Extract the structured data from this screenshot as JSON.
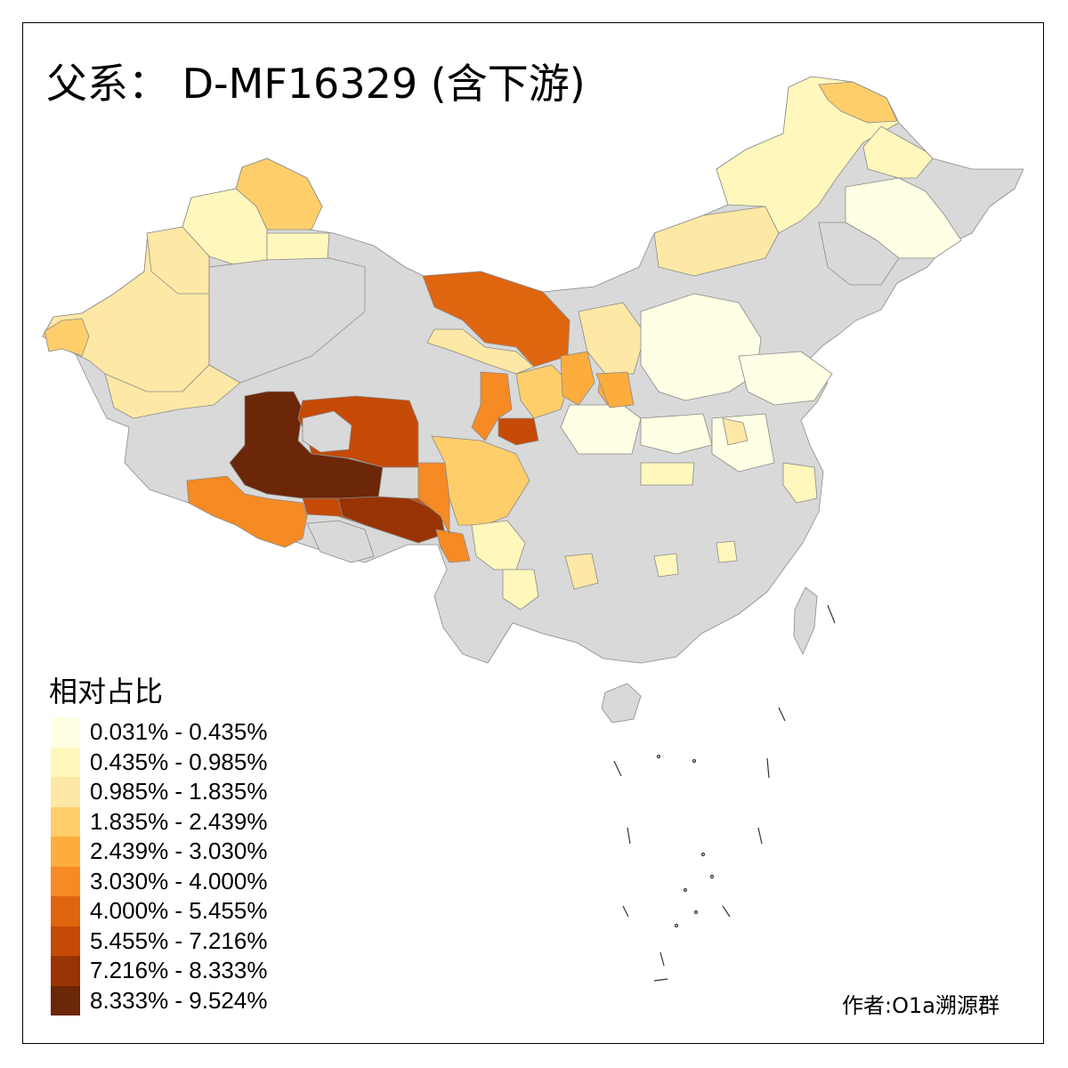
{
  "title": "父系： D-MF16329 (含下游)",
  "legend": {
    "title": "相对占比",
    "items": [
      {
        "label": "0.031% - 0.435%",
        "color": "#ffffe5"
      },
      {
        "label": "0.435% - 0.985%",
        "color": "#fff7bc"
      },
      {
        "label": "0.985% - 1.835%",
        "color": "#fee8a5"
      },
      {
        "label": "1.835% - 2.439%",
        "color": "#fece6b"
      },
      {
        "label": "2.439% - 3.030%",
        "color": "#fdad3e"
      },
      {
        "label": "3.030% - 4.000%",
        "color": "#f68a24"
      },
      {
        "label": "4.000% - 5.455%",
        "color": "#e0650f"
      },
      {
        "label": "5.455% - 7.216%",
        "color": "#c54a06"
      },
      {
        "label": "7.216% - 8.333%",
        "color": "#983404"
      },
      {
        "label": "8.333% - 9.524%",
        "color": "#6c2608"
      }
    ]
  },
  "no_data_color": "#d9d9d9",
  "credit": "作者:O1a溯源群"
}
